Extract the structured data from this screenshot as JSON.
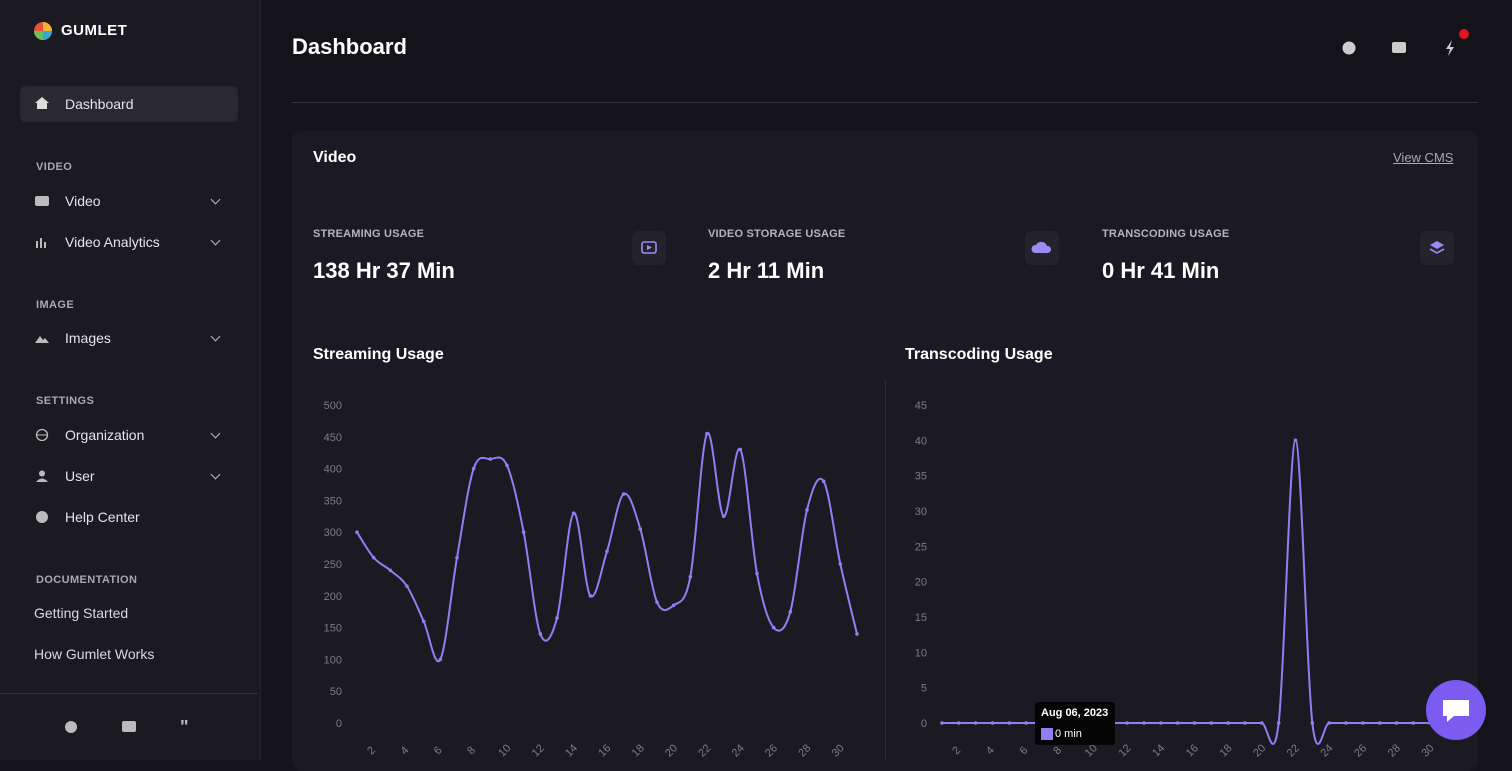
{
  "sidebar": {
    "logo": "GUMLET",
    "dashboard": "Dashboard",
    "sections": [
      {
        "title": "VIDEO",
        "items": [
          "Video",
          "Video Analytics"
        ]
      },
      {
        "title": "IMAGE",
        "items": [
          "Images"
        ]
      },
      {
        "title": "SETTINGS",
        "items": [
          "Organization",
          "User",
          "Help Center"
        ]
      }
    ],
    "documentation": {
      "title": "DOCUMENTATION",
      "items": [
        "Getting Started",
        "How Gumlet Works"
      ]
    }
  },
  "header": {
    "title": "Dashboard"
  },
  "card": {
    "title": "Video",
    "link": "View CMS",
    "stats": [
      {
        "label": "STREAMING USAGE",
        "value": "138 Hr 37 Min"
      },
      {
        "label": "VIDEO STORAGE USAGE",
        "value": "2 Hr 11 Min"
      },
      {
        "label": "TRANSCODING USAGE",
        "value": "0 Hr 41 Min"
      }
    ]
  },
  "chart_data": [
    {
      "type": "line",
      "title": "Streaming Usage",
      "color": "#8f7ff2",
      "categories": [
        null,
        "2",
        null,
        "4",
        null,
        "6",
        null,
        "8",
        null,
        "10",
        null,
        "12",
        null,
        "14",
        null,
        "16",
        null,
        "18",
        null,
        "20",
        null,
        "22",
        null,
        "24",
        null,
        "26",
        null,
        "28",
        null,
        "30",
        null
      ],
      "values": [
        300,
        260,
        240,
        215,
        160,
        100,
        260,
        400,
        415,
        405,
        300,
        140,
        165,
        330,
        200,
        270,
        360,
        305,
        190,
        185,
        230,
        455,
        325,
        430,
        235,
        150,
        175,
        335,
        380,
        250,
        140
      ],
      "ylim": [
        0,
        500
      ],
      "yticks": [
        0,
        50,
        100,
        150,
        200,
        250,
        300,
        350,
        400,
        450,
        500
      ]
    },
    {
      "type": "line",
      "title": "Transcoding Usage",
      "color": "#8f7ff2",
      "categories": [
        null,
        "2",
        null,
        "4",
        null,
        "6",
        null,
        "8",
        null,
        "10",
        null,
        "12",
        null,
        "14",
        null,
        "16",
        null,
        "18",
        null,
        "20",
        null,
        "22",
        null,
        "24",
        null,
        "26",
        null,
        "28",
        null,
        "30",
        null
      ],
      "values": [
        0,
        0,
        0,
        0,
        0,
        0,
        0,
        0,
        0,
        0,
        0,
        0,
        0,
        0,
        0,
        0,
        0,
        0,
        0,
        0,
        0,
        40,
        0,
        0,
        0,
        0,
        0,
        0,
        0,
        0,
        0
      ],
      "ylim": [
        0,
        45
      ],
      "yticks": [
        0,
        5,
        10,
        15,
        20,
        25,
        30,
        35,
        40,
        45
      ],
      "tooltip": {
        "title": "Aug 06, 2023",
        "text": "0 min"
      }
    }
  ]
}
